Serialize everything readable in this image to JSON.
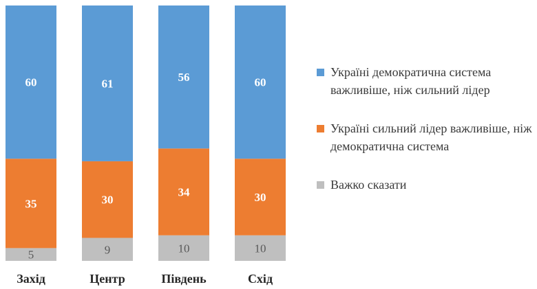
{
  "chart_data": {
    "type": "bar",
    "stacked": true,
    "categories": [
      "Захід",
      "Центр",
      "Південь",
      "Схід"
    ],
    "series": [
      {
        "name": "Україні демократична система важливіше, ніж сильний лідер",
        "values": [
          60,
          61,
          56,
          60
        ],
        "color": "#5b9bd5"
      },
      {
        "name": "Україні сильний лідер важливіше, ніж демократична система",
        "values": [
          35,
          30,
          34,
          30
        ],
        "color": "#ed7d31"
      },
      {
        "name": "Важко сказати",
        "values": [
          5,
          9,
          10,
          10
        ],
        "color": "#bfbfbf"
      }
    ],
    "ylim": [
      0,
      100
    ],
    "grid": false,
    "legend_position": "right"
  }
}
